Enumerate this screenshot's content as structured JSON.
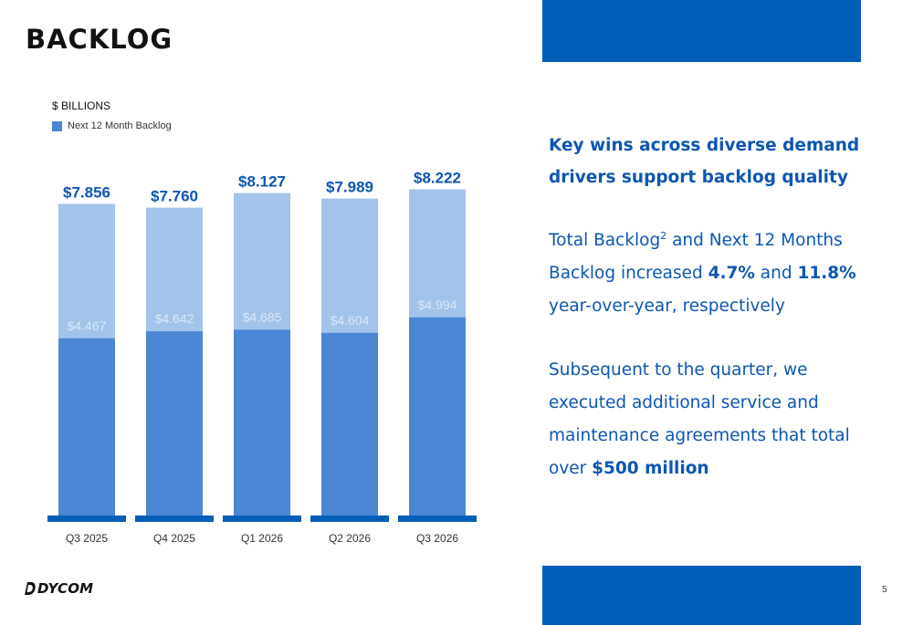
{
  "slide": {
    "title": "BACKLOG",
    "page_number": "5",
    "logo_text": "DYCOM",
    "colors": {
      "brand_blue": "#005eb8",
      "text_blue": "#0d56b3",
      "bar_dark": "#4a86d4",
      "bar_light": "#a2c3ea"
    }
  },
  "chart_data": {
    "type": "bar",
    "stacked": true,
    "units_label": "$ BILLIONS",
    "categories": [
      "Q3 2025",
      "Q4 2025",
      "Q1 2026",
      "Q2 2026",
      "Q3 2026"
    ],
    "series": [
      {
        "name": "Next 12 Month Backlog",
        "values": [
          4.467,
          4.642,
          4.685,
          4.604,
          4.994
        ],
        "labels": [
          "$4.467",
          "$4.642",
          "$4.685",
          "$4.604",
          "$4.994"
        ]
      }
    ],
    "totals": [
      7.856,
      7.76,
      8.127,
      7.989,
      8.222
    ],
    "total_labels": [
      "$7.856",
      "$7.760",
      "$8.127",
      "$7.989",
      "$8.222"
    ],
    "ylim": [
      0,
      9.2
    ],
    "grid": false,
    "legend": "top-left"
  },
  "panel": {
    "headline_line1": "Key wins across diverse demand",
    "headline_line2": "drivers support backlog quality",
    "p1_a": "Total Backlog",
    "p1_sup": "2",
    "p1_b": " and Next 12 Months Backlog increased ",
    "p1_c": "4.7%",
    "p1_d": " and ",
    "p1_e": "11.8%",
    "p1_f": " year-over-year, respectively",
    "p2_a": "Subsequent to the quarter, we executed additional service and maintenance agreements that total over ",
    "p2_b": "$500 million"
  }
}
